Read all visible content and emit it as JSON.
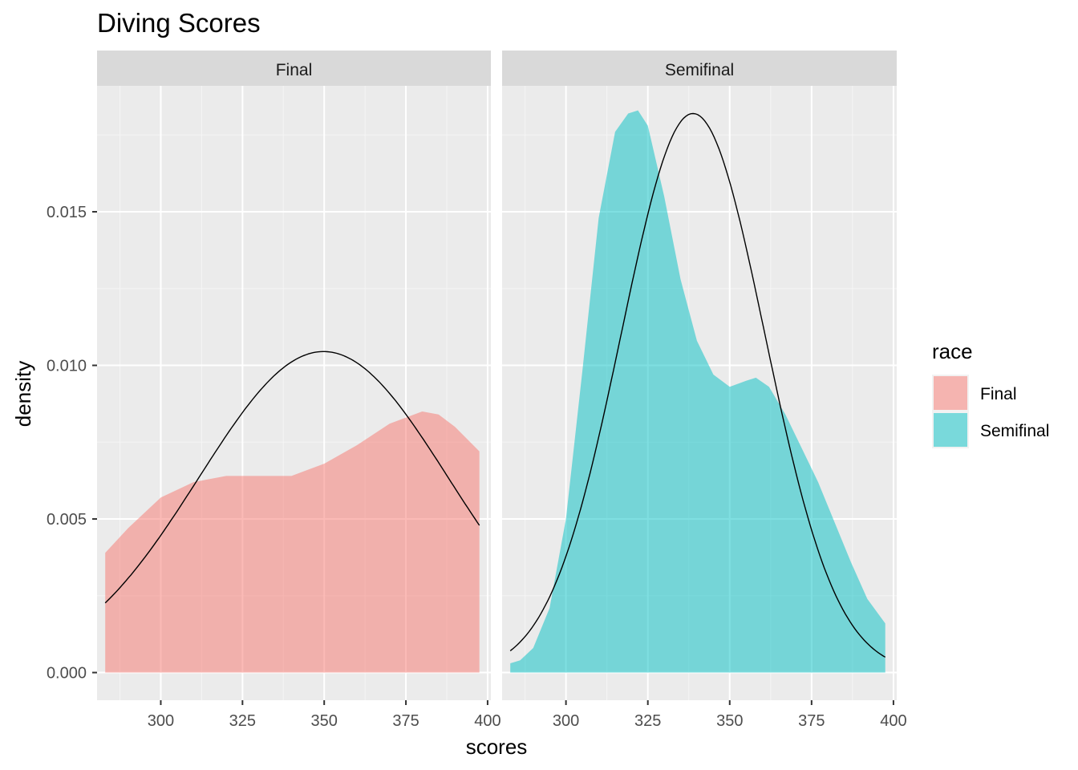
{
  "chart_data": {
    "type": "area",
    "title": "Diving Scores",
    "xlabel": "scores",
    "ylabel": "density",
    "xlim": [
      280.5,
      401
    ],
    "ylim": [
      -0.0009,
      0.0191
    ],
    "x_ticks": [
      300,
      325,
      350,
      375,
      400
    ],
    "x_tick_labels": [
      "300",
      "325",
      "350",
      "375",
      "400"
    ],
    "y_ticks": [
      0.0,
      0.005,
      0.01,
      0.015
    ],
    "y_tick_labels": [
      "0.000",
      "0.005",
      "0.010",
      "0.015"
    ],
    "grid": true,
    "legend": {
      "title": "race",
      "position": "right",
      "entries": [
        {
          "label": "Final",
          "color": "#F8766D"
        },
        {
          "label": "Semifinal",
          "color": "#00BFC4"
        }
      ]
    },
    "panels": [
      {
        "strip": "Final",
        "fill_color": "#F8766D",
        "density": {
          "x": [
            283,
            290,
            300,
            310,
            320,
            330,
            340,
            350,
            360,
            370,
            380,
            385,
            390,
            397.5
          ],
          "y": [
            0.0039,
            0.0047,
            0.0057,
            0.0062,
            0.0064,
            0.0064,
            0.0064,
            0.0068,
            0.0074,
            0.0081,
            0.0085,
            0.0084,
            0.008,
            0.0072
          ]
        },
        "normal_curve": {
          "mean": 349.8,
          "sd": 38.2,
          "peak": 0.01045,
          "x_range": [
            283,
            397.5
          ]
        }
      },
      {
        "strip": "Semifinal",
        "fill_color": "#00BFC4",
        "density": {
          "x": [
            283,
            286,
            290,
            295,
            300,
            305,
            310,
            315,
            319,
            322,
            325,
            330,
            335,
            340,
            345,
            350,
            355,
            358,
            362,
            367,
            372,
            377,
            382,
            387,
            392,
            397.5
          ],
          "y": [
            0.0003,
            0.0004,
            0.0008,
            0.0021,
            0.005,
            0.0098,
            0.0148,
            0.0176,
            0.0182,
            0.0183,
            0.0178,
            0.0155,
            0.0128,
            0.0108,
            0.0097,
            0.0093,
            0.0095,
            0.0096,
            0.0093,
            0.0084,
            0.0073,
            0.0062,
            0.0049,
            0.0036,
            0.0024,
            0.0016
          ]
        },
        "normal_curve": {
          "mean": 338.8,
          "sd": 21.9,
          "peak": 0.0182,
          "x_range": [
            283,
            397.5
          ]
        }
      }
    ]
  }
}
